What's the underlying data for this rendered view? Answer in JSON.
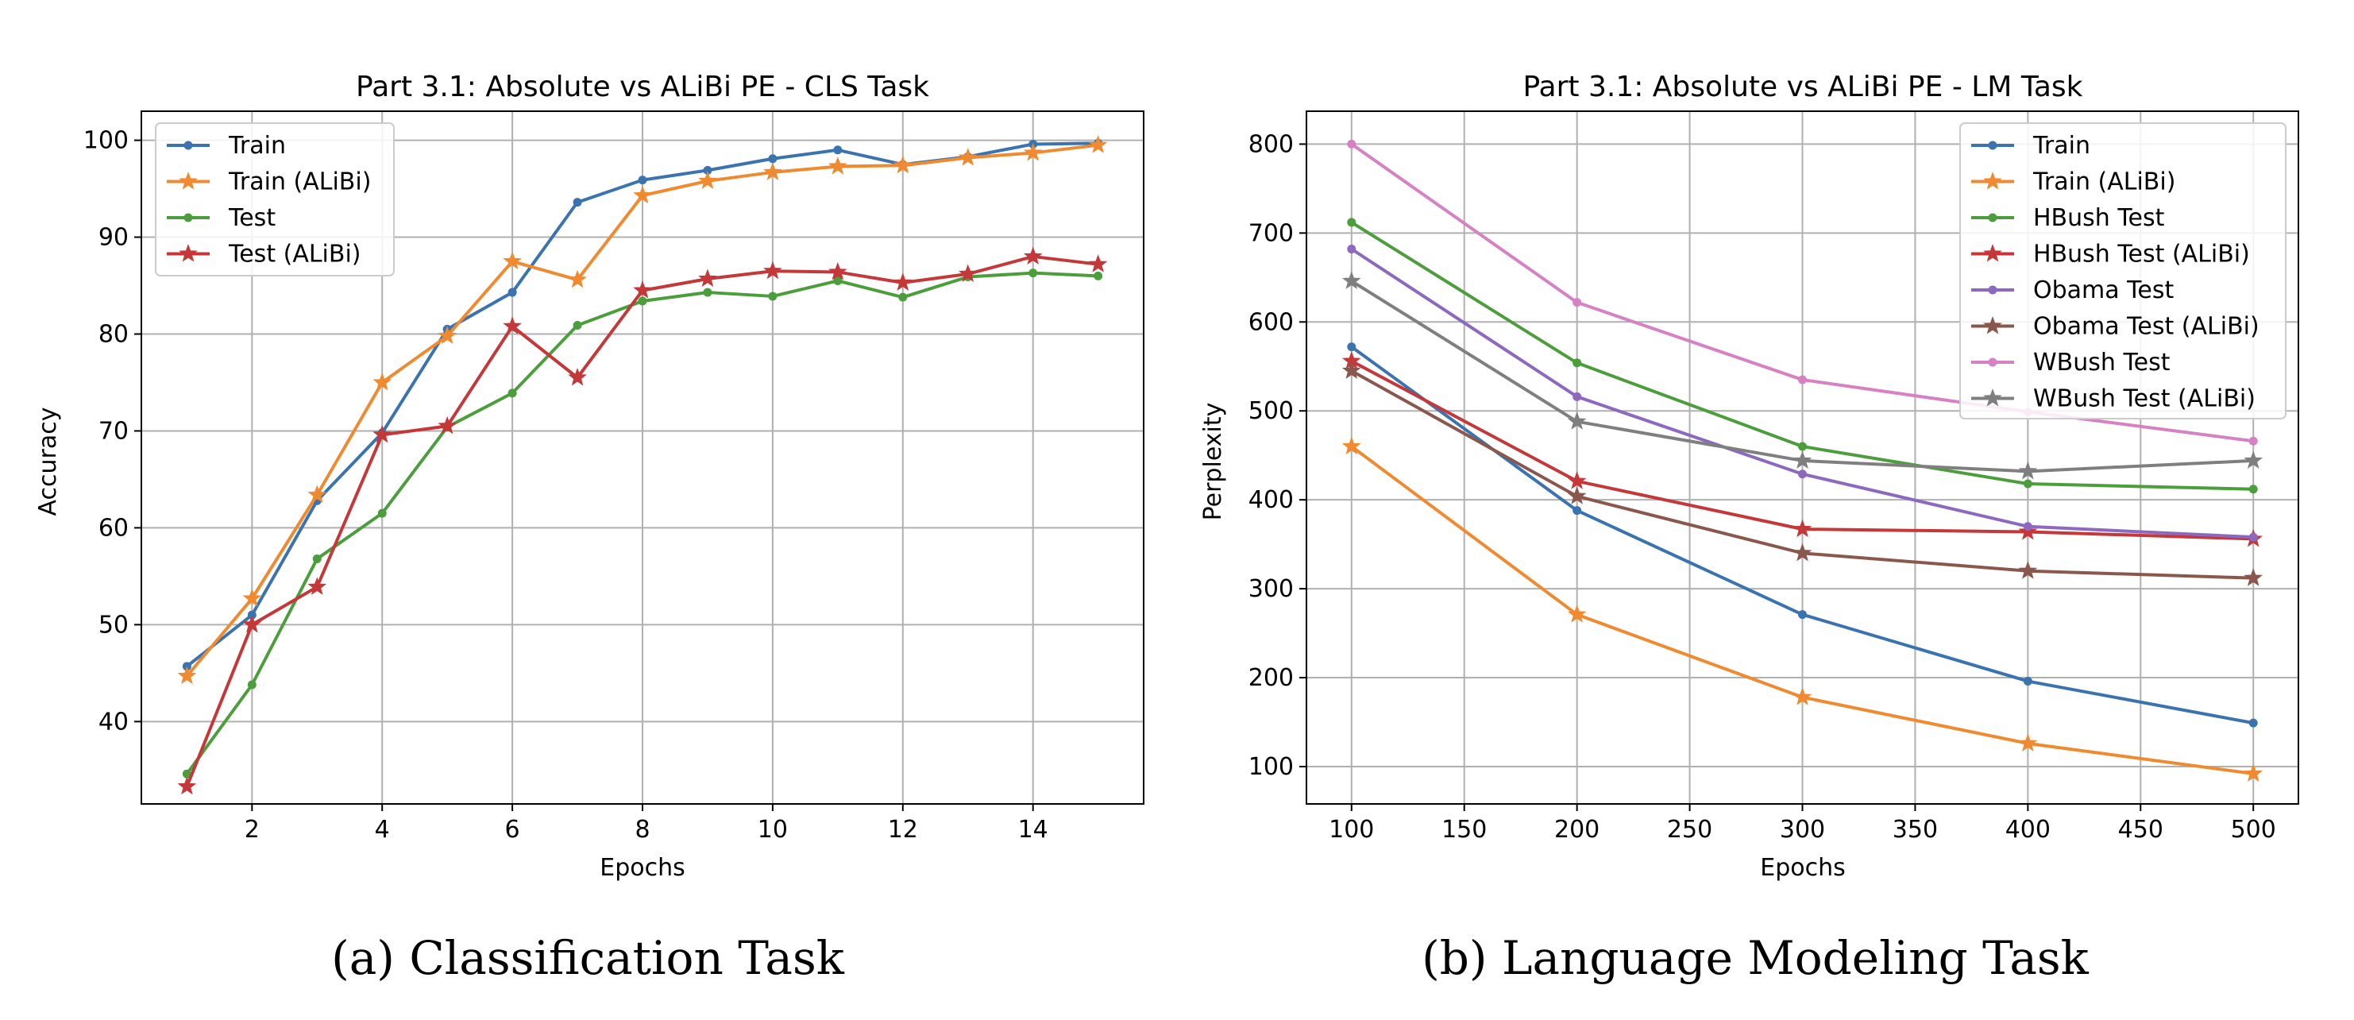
{
  "colors": {
    "blue": "#3a73b0",
    "orange": "#f08a30",
    "green": "#4c9e3c",
    "red": "#c4383a",
    "purple": "#8c68bf",
    "brown": "#8a574c",
    "pink": "#d681c4",
    "gray": "#7f7f7f"
  },
  "captions": {
    "a": "(a) Classification Task",
    "b": "(b) Language Modeling Task"
  },
  "chart_data": [
    {
      "type": "line",
      "title": "Part 3.1: Absolute vs ALiBi PE - CLS Task",
      "xlabel": "Epochs",
      "ylabel": "Accuracy",
      "xlim": [
        0.3,
        15.7
      ],
      "ylim": [
        31.5,
        103
      ],
      "xticks": [
        2,
        4,
        6,
        8,
        10,
        12,
        14
      ],
      "yticks": [
        40,
        50,
        60,
        70,
        80,
        90,
        100
      ],
      "grid": true,
      "legend": "top-left",
      "x": [
        1,
        2,
        3,
        4,
        5,
        6,
        7,
        8,
        9,
        10,
        11,
        12,
        13,
        14,
        15
      ],
      "series": [
        {
          "name": "Train",
          "color": "blue",
          "marker": "dot",
          "values": [
            45.7,
            51.0,
            62.8,
            69.8,
            80.5,
            84.3,
            93.6,
            95.9,
            96.9,
            98.1,
            99.0,
            97.5,
            98.3,
            99.6,
            99.7
          ]
        },
        {
          "name": "Train (ALiBi)",
          "color": "orange",
          "marker": "star",
          "values": [
            44.7,
            52.7,
            63.4,
            75.0,
            79.8,
            87.5,
            85.6,
            94.3,
            95.8,
            96.7,
            97.3,
            97.4,
            98.2,
            98.7,
            99.5
          ]
        },
        {
          "name": "Test",
          "color": "green",
          "marker": "dot",
          "values": [
            34.6,
            43.8,
            56.8,
            61.5,
            70.4,
            73.9,
            80.9,
            83.4,
            84.3,
            83.9,
            85.5,
            83.8,
            85.9,
            86.3,
            86.0
          ]
        },
        {
          "name": "Test (ALiBi)",
          "color": "red",
          "marker": "star",
          "values": [
            33.3,
            50.0,
            53.9,
            69.6,
            70.5,
            80.8,
            75.5,
            84.5,
            85.7,
            86.5,
            86.4,
            85.3,
            86.2,
            88.0,
            87.2
          ]
        }
      ]
    },
    {
      "type": "line",
      "title": "Part 3.1: Absolute vs ALiBi PE - LM Task",
      "xlabel": "Epochs",
      "ylabel": "Perplexity",
      "xlim": [
        80,
        520
      ],
      "ylim": [
        58,
        837
      ],
      "xticks": [
        100,
        150,
        200,
        250,
        300,
        350,
        400,
        450,
        500
      ],
      "yticks": [
        100,
        200,
        300,
        400,
        500,
        600,
        700,
        800
      ],
      "grid": true,
      "legend": "top-right",
      "x": [
        100,
        200,
        300,
        400,
        500
      ],
      "series": [
        {
          "name": "Train",
          "color": "blue",
          "marker": "dot",
          "values": [
            572,
            388,
            271,
            196,
            149
          ]
        },
        {
          "name": "Train (ALiBi)",
          "color": "orange",
          "marker": "star",
          "values": [
            460,
            271,
            178,
            126,
            92
          ]
        },
        {
          "name": "HBush Test",
          "color": "green",
          "marker": "dot",
          "values": [
            712,
            554,
            460,
            418,
            412
          ]
        },
        {
          "name": "HBush Test (ALiBi)",
          "color": "red",
          "marker": "star",
          "values": [
            556,
            421,
            367,
            364,
            356
          ]
        },
        {
          "name": "Obama Test",
          "color": "purple",
          "marker": "dot",
          "values": [
            682,
            516,
            429,
            370,
            358
          ]
        },
        {
          "name": "Obama Test (ALiBi)",
          "color": "brown",
          "marker": "star",
          "values": [
            545,
            404,
            340,
            320,
            312
          ]
        },
        {
          "name": "WBush Test",
          "color": "pink",
          "marker": "dot",
          "values": [
            800,
            622,
            535,
            499,
            466
          ]
        },
        {
          "name": "WBush Test (ALiBi)",
          "color": "gray",
          "marker": "star",
          "values": [
            646,
            488,
            444,
            432,
            444
          ]
        }
      ]
    }
  ]
}
